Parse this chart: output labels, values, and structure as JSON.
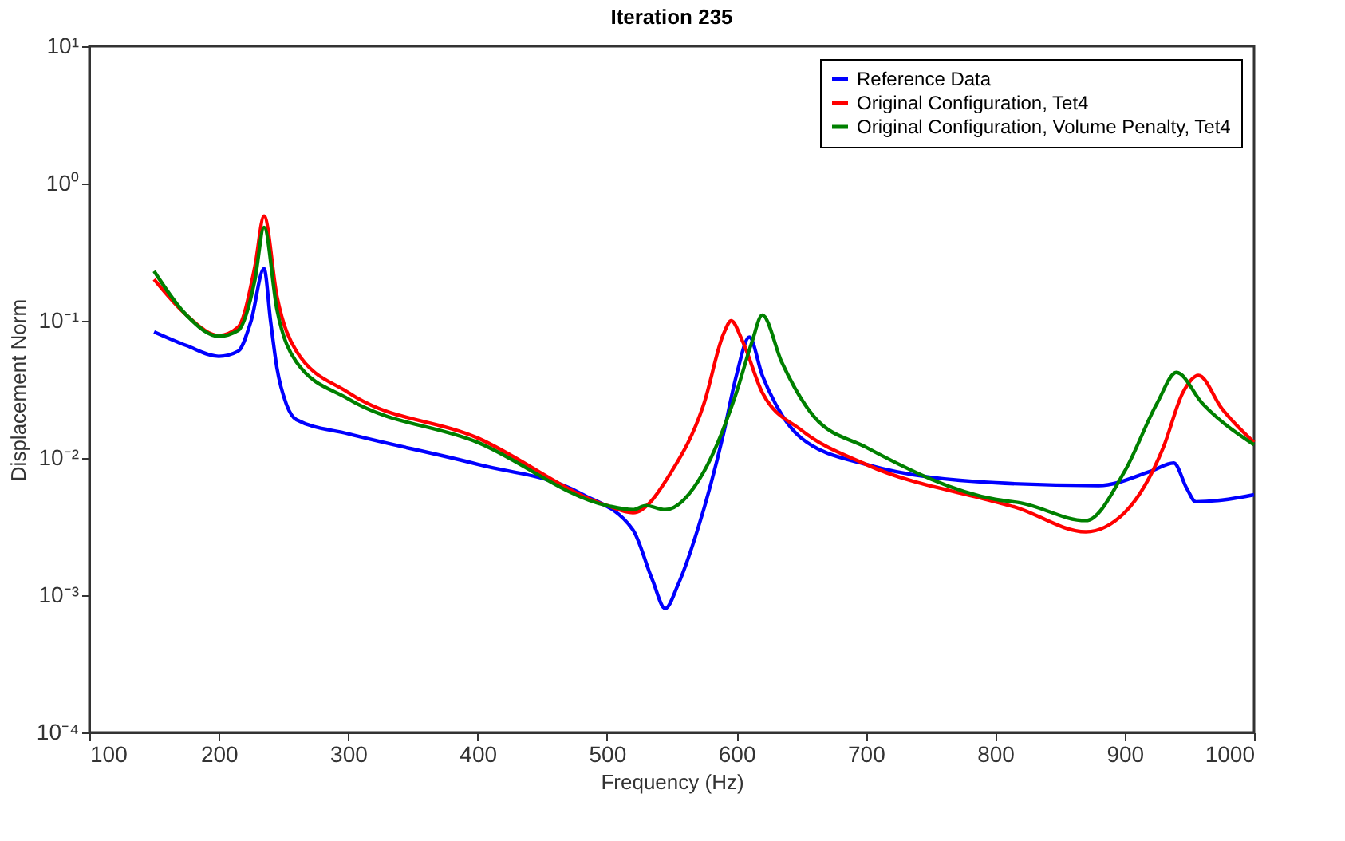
{
  "chart_data": {
    "type": "line",
    "title": "Iteration 235",
    "xlabel": "Frequency (Hz)",
    "ylabel": "Displacement Norm",
    "log": "y",
    "grid": false,
    "legend": "top right",
    "line_style": "solid",
    "marker": "none",
    "xlim": [
      100,
      1000
    ],
    "xticks": [
      100,
      200,
      300,
      400,
      500,
      600,
      700,
      800,
      900,
      1000
    ],
    "ylim": [
      0.0001,
      10
    ],
    "yticks": [
      {
        "value": 0.0001,
        "label": "10⁻⁴"
      },
      {
        "value": 0.001,
        "label": "10⁻³"
      },
      {
        "value": 0.01,
        "label": "10⁻²"
      },
      {
        "value": 0.1,
        "label": "10⁻¹"
      },
      {
        "value": 1,
        "label": "10⁰"
      },
      {
        "value": 10,
        "label": "10¹"
      }
    ],
    "series": [
      {
        "name": "Reference Data",
        "color": "#0000ff",
        "x": [
          150,
          175,
          200,
          215,
          225,
          235,
          240,
          245,
          252,
          260,
          300,
          400,
          480,
          520,
          535,
          545,
          555,
          570,
          590,
          600,
          610,
          620,
          630,
          650,
          700,
          800,
          880,
          920,
          938,
          948,
          955,
          980,
          1000
        ],
        "values": [
          0.083,
          0.066,
          0.055,
          0.06,
          0.1,
          0.24,
          0.1,
          0.045,
          0.025,
          0.019,
          0.015,
          0.009,
          0.0055,
          0.003,
          0.0013,
          0.0008,
          0.0012,
          0.003,
          0.015,
          0.04,
          0.076,
          0.04,
          0.025,
          0.014,
          0.009,
          0.0066,
          0.0063,
          0.008,
          0.0092,
          0.006,
          0.0048,
          0.005,
          0.0054
        ]
      },
      {
        "name": "Original Configuration, Tet4",
        "color": "#ff0000",
        "x": [
          150,
          175,
          200,
          215,
          228,
          235,
          245,
          260,
          300,
          400,
          500,
          520,
          550,
          575,
          590,
          596,
          605,
          620,
          650,
          700,
          800,
          815,
          870,
          900,
          930,
          945,
          957,
          975,
          1000
        ],
        "values": [
          0.2,
          0.11,
          0.078,
          0.09,
          0.25,
          0.58,
          0.15,
          0.06,
          0.03,
          0.014,
          0.0045,
          0.004,
          0.008,
          0.025,
          0.08,
          0.1,
          0.07,
          0.03,
          0.016,
          0.009,
          0.0048,
          0.0044,
          0.0029,
          0.004,
          0.012,
          0.03,
          0.04,
          0.023,
          0.013
        ]
      },
      {
        "name": "Original Configuration, Volume Penalty, Tet4",
        "color": "#008000",
        "x": [
          150,
          175,
          200,
          215,
          228,
          235,
          245,
          260,
          300,
          400,
          500,
          520,
          530,
          545,
          575,
          600,
          612,
          620,
          635,
          660,
          700,
          800,
          820,
          870,
          900,
          925,
          940,
          960,
          1000
        ],
        "values": [
          0.23,
          0.11,
          0.077,
          0.085,
          0.2,
          0.48,
          0.12,
          0.05,
          0.027,
          0.013,
          0.0045,
          0.0042,
          0.0045,
          0.0042,
          0.008,
          0.03,
          0.07,
          0.11,
          0.05,
          0.02,
          0.012,
          0.005,
          0.0047,
          0.0035,
          0.008,
          0.025,
          0.042,
          0.025,
          0.0125
        ]
      }
    ]
  }
}
